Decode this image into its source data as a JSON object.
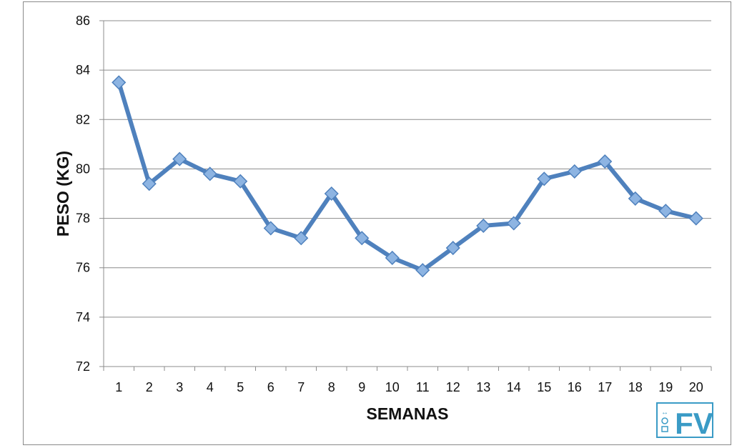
{
  "chart_data": {
    "type": "line",
    "title": "",
    "xlabel": "SEMANAS",
    "ylabel": "PESO (KG)",
    "ylim": [
      72,
      86
    ],
    "yticks": [
      72,
      74,
      76,
      78,
      80,
      82,
      84,
      86
    ],
    "grid": true,
    "categories": [
      "1",
      "2",
      "3",
      "4",
      "5",
      "6",
      "7",
      "8",
      "9",
      "10",
      "11",
      "12",
      "13",
      "14",
      "15",
      "16",
      "17",
      "18",
      "19",
      "20"
    ],
    "series": [
      {
        "values": [
          83.5,
          79.4,
          80.4,
          79.8,
          79.5,
          77.6,
          77.2,
          79.0,
          77.2,
          76.4,
          75.9,
          76.8,
          77.7,
          77.8,
          79.6,
          79.9,
          80.3,
          78.8,
          78.3,
          78.0
        ],
        "color": "#4f81bd",
        "marker": "diamond",
        "marker_color": "#8db4e2"
      }
    ]
  },
  "logo": {
    "text": "FV",
    "color": "#3a9bc6"
  },
  "colors": {
    "grid": "#8c8c8c",
    "axis": "#8c8c8c"
  }
}
